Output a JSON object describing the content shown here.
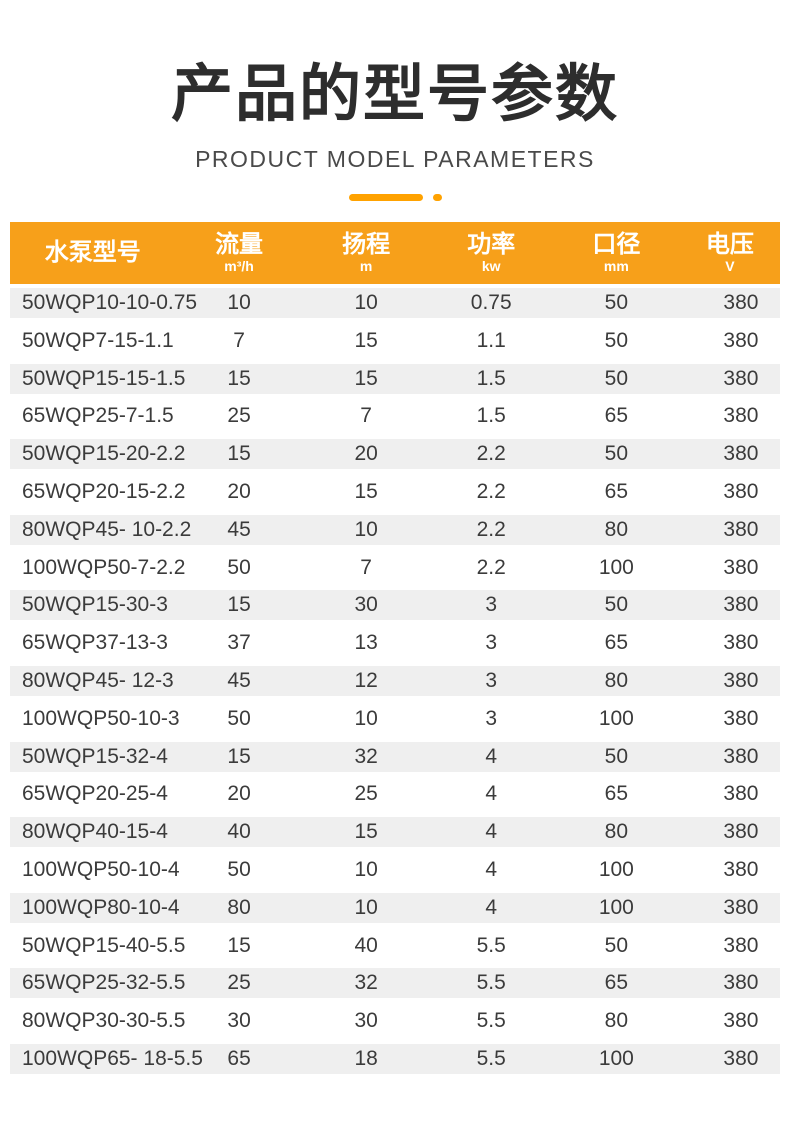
{
  "header": {
    "title": "产品的型号参数",
    "subtitle": "PRODUCT MODEL PARAMETERS"
  },
  "colors": {
    "accent_orange": "#F7A01A",
    "decoration_orange": "#FFA200",
    "row_stripe_gray": "#EFEFEF",
    "title_text": "#2D2D2D",
    "cell_text": "#3B3B3B"
  },
  "table": {
    "columns": [
      {
        "key": "pump-model",
        "label": "水泵型号",
        "unit": ""
      },
      {
        "key": "flow",
        "label": "流量",
        "unit": "m³/h"
      },
      {
        "key": "head",
        "label": "扬程",
        "unit": "m"
      },
      {
        "key": "power",
        "label": "功率",
        "unit": "kw"
      },
      {
        "key": "diameter",
        "label": "口径",
        "unit": "mm"
      },
      {
        "key": "voltage",
        "label": "电压",
        "unit": "V"
      }
    ],
    "rows": [
      [
        "50WQP10-10-0.75",
        "10",
        "10",
        "0.75",
        "50",
        "380"
      ],
      [
        "50WQP7-15-1.1",
        "7",
        "15",
        "1.1",
        "50",
        "380"
      ],
      [
        "50WQP15-15-1.5",
        "15",
        "15",
        "1.5",
        "50",
        "380"
      ],
      [
        "65WQP25-7-1.5",
        "25",
        "7",
        "1.5",
        "65",
        "380"
      ],
      [
        "50WQP15-20-2.2",
        "15",
        "20",
        "2.2",
        "50",
        "380"
      ],
      [
        "65WQP20-15-2.2",
        "20",
        "15",
        "2.2",
        "65",
        "380"
      ],
      [
        "80WQP45- 10-2.2",
        "45",
        "10",
        "2.2",
        "80",
        "380"
      ],
      [
        "100WQP50-7-2.2",
        "50",
        "7",
        "2.2",
        "100",
        "380"
      ],
      [
        "50WQP15-30-3",
        "15",
        "30",
        "3",
        "50",
        "380"
      ],
      [
        "65WQP37-13-3",
        "37",
        "13",
        "3",
        "65",
        "380"
      ],
      [
        "80WQP45- 12-3",
        "45",
        "12",
        "3",
        "80",
        "380"
      ],
      [
        "100WQP50-10-3",
        "50",
        "10",
        "3",
        "100",
        "380"
      ],
      [
        "50WQP15-32-4",
        "15",
        "32",
        "4",
        "50",
        "380"
      ],
      [
        "65WQP20-25-4",
        "20",
        "25",
        "4",
        "65",
        "380"
      ],
      [
        "80WQP40-15-4",
        "40",
        "15",
        "4",
        "80",
        "380"
      ],
      [
        "100WQP50-10-4",
        "50",
        "10",
        "4",
        "100",
        "380"
      ],
      [
        "100WQP80-10-4",
        "80",
        "10",
        "4",
        "100",
        "380"
      ],
      [
        "50WQP15-40-5.5",
        "15",
        "40",
        "5.5",
        "50",
        "380"
      ],
      [
        "65WQP25-32-5.5",
        "25",
        "32",
        "5.5",
        "65",
        "380"
      ],
      [
        "80WQP30-30-5.5",
        "30",
        "30",
        "5.5",
        "80",
        "380"
      ],
      [
        "100WQP65- 18-5.5",
        "65",
        "18",
        "5.5",
        "100",
        "380"
      ]
    ]
  }
}
